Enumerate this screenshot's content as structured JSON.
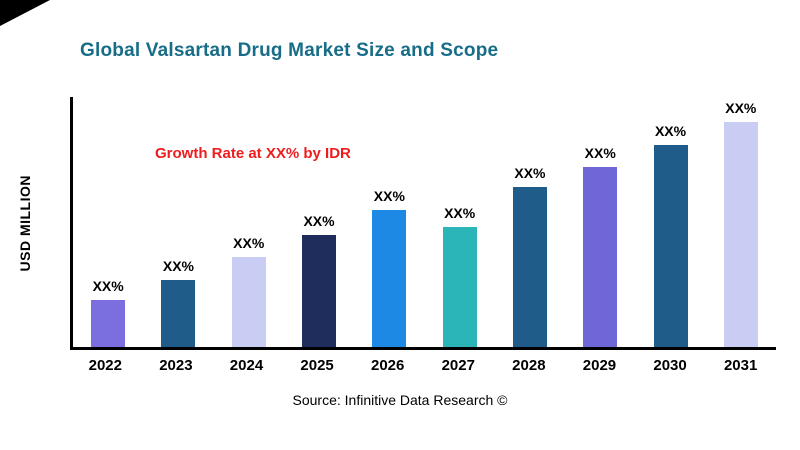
{
  "title": "Global Valsartan Drug Market Size and Scope",
  "annotation": "Growth Rate at XX% by IDR",
  "y_axis_label": "USD MILLION",
  "source": "Source: Infinitive Data Research ©",
  "colors": {
    "title": "#176d87",
    "annotation": "#ee1c1c",
    "axis": "#000000"
  },
  "chart_data": {
    "type": "bar",
    "title": "Global Valsartan Drug Market Size and Scope",
    "categories": [
      "2022",
      "2023",
      "2024",
      "2025",
      "2026",
      "2027",
      "2028",
      "2029",
      "2030",
      "2031"
    ],
    "values": [
      19,
      27,
      36,
      45,
      55,
      48,
      64,
      72,
      81,
      90
    ],
    "bar_labels": [
      "XX%",
      "XX%",
      "XX%",
      "XX%",
      "XX%",
      "XX%",
      "XX%",
      "XX%",
      "XX%",
      "XX%"
    ],
    "bar_colors": [
      "#7b6fe0",
      "#1f5c8a",
      "#c9cdf4",
      "#1f2d5c",
      "#1e88e5",
      "#2bb5b8",
      "#1f5c8a",
      "#6f66d8",
      "#1f5c8a",
      "#c9cdf4"
    ],
    "xlabel": "",
    "ylabel": "USD MILLION",
    "ylim": [
      0,
      100
    ],
    "grid": false,
    "legend": "none",
    "annotation": "Growth Rate at XX% by IDR"
  }
}
